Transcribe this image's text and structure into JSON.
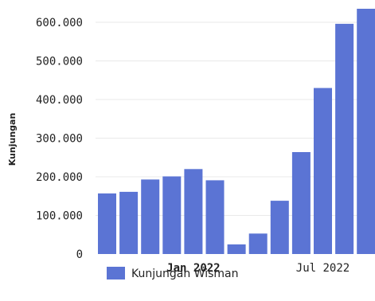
{
  "chart_data": {
    "type": "bar",
    "ylabel": "Kunjungan",
    "xlabel": "",
    "ylim": [
      0,
      640000
    ],
    "yticks": [
      {
        "value": 0,
        "label": "0"
      },
      {
        "value": 100000,
        "label": "100.000"
      },
      {
        "value": 200000,
        "label": "200.000"
      },
      {
        "value": 300000,
        "label": "300.000"
      },
      {
        "value": 400000,
        "label": "400.000"
      },
      {
        "value": 500000,
        "label": "500.000"
      },
      {
        "value": 600000,
        "label": "600.000"
      }
    ],
    "xticks": [
      {
        "index": 4,
        "label": "Jan 2022",
        "bold": true
      },
      {
        "index": 10,
        "label": "Jul 2022",
        "bold": false
      }
    ],
    "grid": true,
    "legend_position": "bottom-left",
    "series": [
      {
        "name": "Kunjungan Wisman",
        "color": "#5b74d4",
        "values": [
          157000,
          161000,
          193000,
          201000,
          220000,
          191000,
          25000,
          53000,
          138000,
          264000,
          430000,
          596000,
          635000
        ]
      }
    ]
  }
}
